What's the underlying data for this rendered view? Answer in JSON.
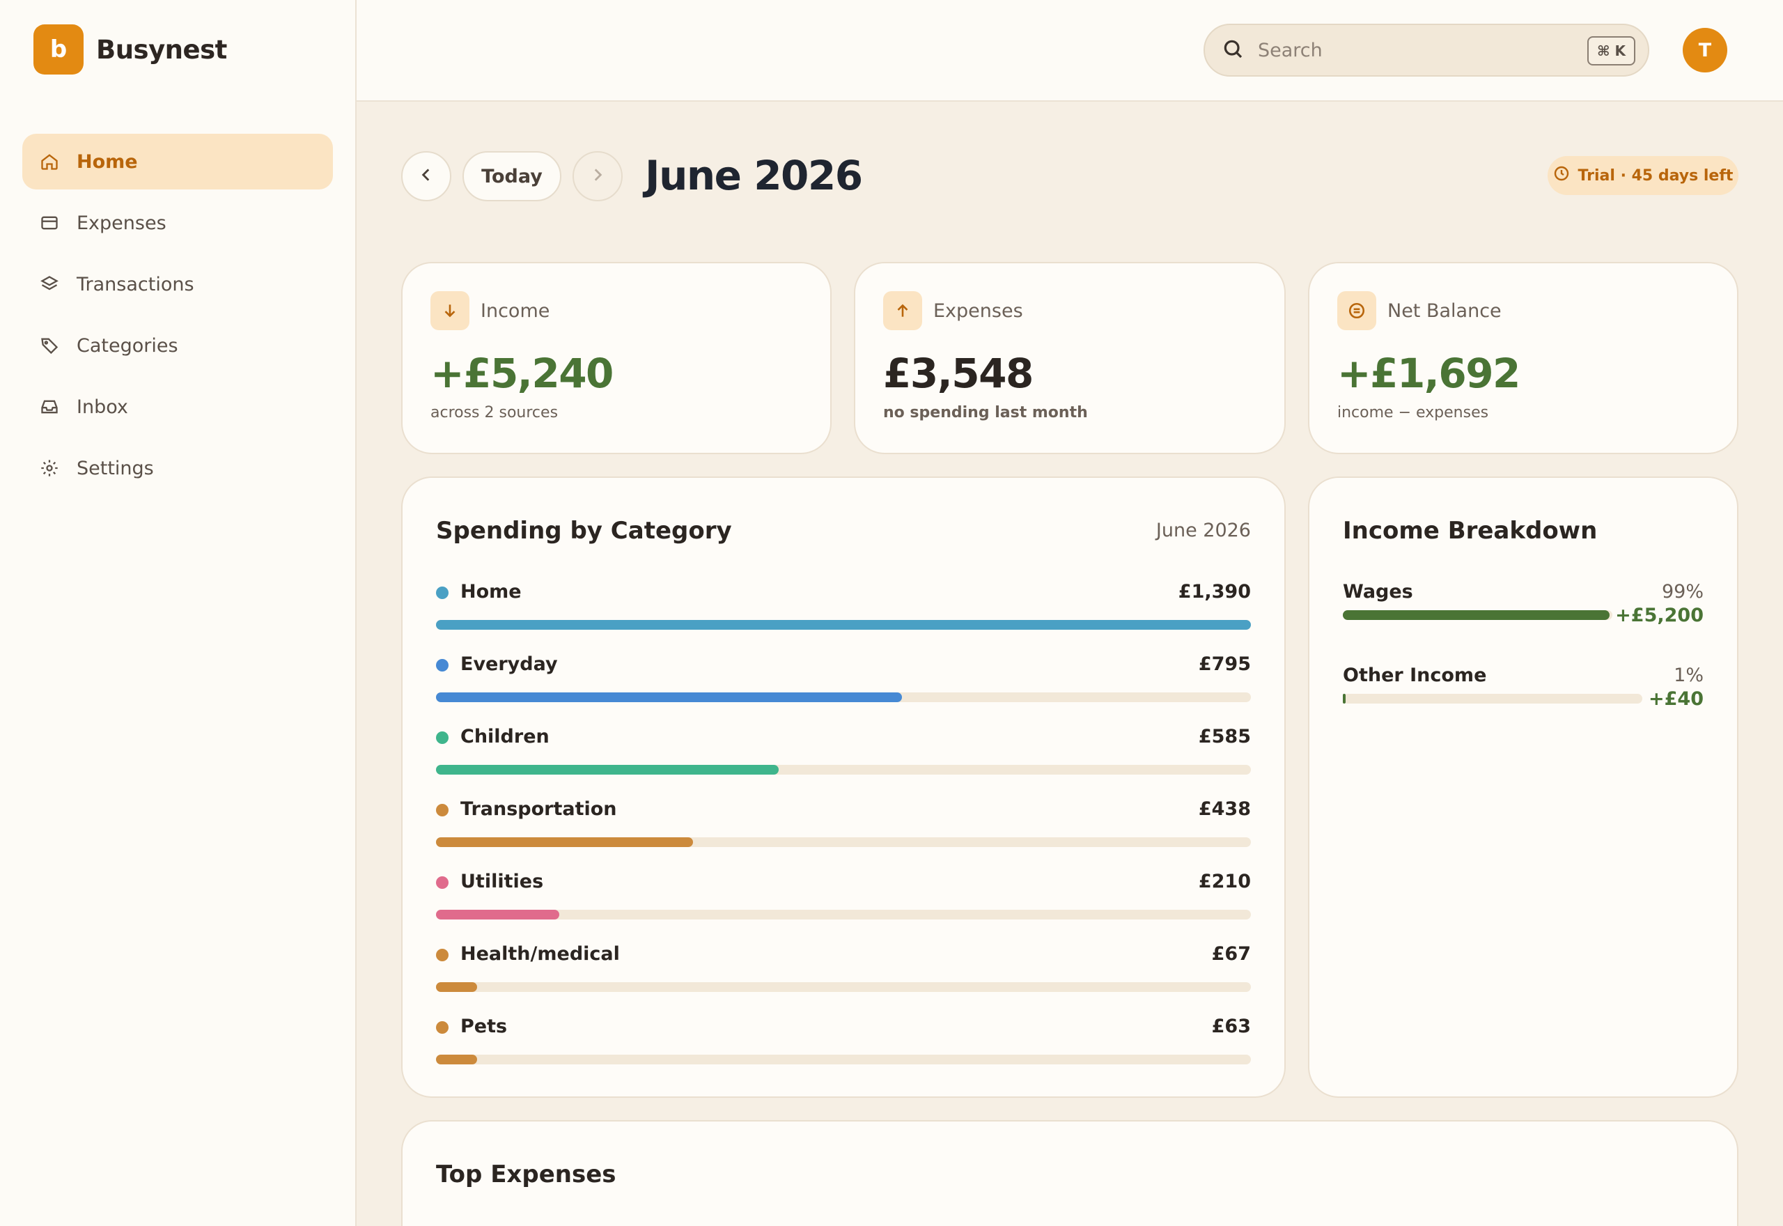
{
  "brand": {
    "logo_letter": "b",
    "name": "Busynest",
    "accent": "#e38a12"
  },
  "nav": {
    "items": [
      {
        "label": "Home",
        "icon": "home-icon",
        "active": true
      },
      {
        "label": "Expenses",
        "icon": "card-icon",
        "active": false
      },
      {
        "label": "Transactions",
        "icon": "layers-icon",
        "active": false
      },
      {
        "label": "Categories",
        "icon": "tag-icon",
        "active": false
      },
      {
        "label": "Inbox",
        "icon": "inbox-icon",
        "active": false
      },
      {
        "label": "Settings",
        "icon": "gear-icon",
        "active": false
      }
    ]
  },
  "topbar": {
    "search_placeholder": "Search",
    "shortcut": "⌘ K",
    "avatar_initial": "T"
  },
  "header": {
    "today_label": "Today",
    "month": "June 2026",
    "trial_label": "Trial · 45 days left"
  },
  "stats": {
    "income": {
      "label": "Income",
      "value": "+£5,240",
      "sub": "across 2 sources",
      "icon": "arrow-down-icon"
    },
    "expenses": {
      "label": "Expenses",
      "value": "£3,548",
      "sub": "no spending last month",
      "icon": "arrow-up-icon"
    },
    "net": {
      "label": "Net Balance",
      "value": "+£1,692",
      "sub": "income − expenses",
      "icon": "balance-icon"
    }
  },
  "spending": {
    "title": "Spending by Category",
    "period": "June 2026",
    "max": 1390,
    "categories": [
      {
        "name": "Home",
        "amount": "£1,390",
        "value": 1390,
        "color": "#4aa0c4"
      },
      {
        "name": "Everyday",
        "amount": "£795",
        "value": 795,
        "color": "#4689d4"
      },
      {
        "name": "Children",
        "amount": "£585",
        "value": 585,
        "color": "#3fb58c"
      },
      {
        "name": "Transportation",
        "amount": "£438",
        "value": 438,
        "color": "#cc8a3c"
      },
      {
        "name": "Utilities",
        "amount": "£210",
        "value": 210,
        "color": "#e06b8c"
      },
      {
        "name": "Health/medical",
        "amount": "£67",
        "value": 67,
        "color": "#cc8a3c"
      },
      {
        "name": "Pets",
        "amount": "£63",
        "value": 63,
        "color": "#cc8a3c"
      }
    ]
  },
  "income_breakdown": {
    "title": "Income Breakdown",
    "sources": [
      {
        "name": "Wages",
        "pct": "99%",
        "amount": "+£5,200",
        "fraction": 0.99,
        "color": "#4a7435"
      },
      {
        "name": "Other Income",
        "pct": "1%",
        "amount": "+£40",
        "fraction": 0.01,
        "color": "#4a7435"
      }
    ]
  },
  "top_expenses": {
    "title": "Top Expenses"
  }
}
